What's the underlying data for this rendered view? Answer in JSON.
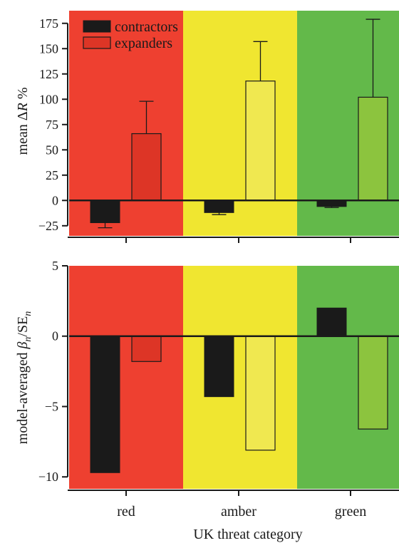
{
  "colors": {
    "red": "#ee4030",
    "amber": "#f0e630",
    "green": "#63b94a",
    "contractors": "#1a1a1a",
    "expanders_red": "#dd3526",
    "expanders_amber": "#f0e850",
    "expanders_green": "#8cc43e",
    "axis": "#1a1a1a"
  },
  "xlabel": "UK threat category",
  "categories": [
    "red",
    "amber",
    "green"
  ],
  "chart_data": [
    {
      "type": "bar",
      "ylabel_prefix": "mean Δ",
      "ylabel_italic": "R",
      "ylabel_suffix": " %",
      "categories": [
        "red",
        "amber",
        "green"
      ],
      "ylim": [
        -35,
        190
      ],
      "yticks": [
        -25,
        0,
        25,
        50,
        75,
        100,
        125,
        150,
        175
      ],
      "ytick_labels": [
        "−25",
        "0",
        "25",
        "50",
        "75",
        "100",
        "125",
        "150",
        "175"
      ],
      "legend_position": "top-left",
      "series": [
        {
          "name": "contractors",
          "values": [
            -22,
            -12,
            -6
          ],
          "error_upper": [
            -27,
            -14,
            -7
          ]
        },
        {
          "name": "expanders",
          "values": [
            66,
            118,
            102
          ],
          "error_upper": [
            98,
            157,
            179
          ]
        }
      ]
    },
    {
      "type": "bar",
      "ylabel_prefix": "model-averaged ",
      "ylabel_beta": "β",
      "ylabel_sub_n": "n",
      "ylabel_mid": "/SE",
      "categories": [
        "red",
        "amber",
        "green"
      ],
      "ylim": [
        -11,
        5
      ],
      "yticks": [
        -10,
        -5,
        0,
        5
      ],
      "ytick_labels": [
        "−10",
        "−5",
        "0",
        "5"
      ],
      "series": [
        {
          "name": "contractors",
          "values": [
            -9.7,
            -4.3,
            2.0
          ]
        },
        {
          "name": "expanders",
          "values": [
            -1.8,
            -8.1,
            -6.6
          ]
        }
      ]
    }
  ]
}
